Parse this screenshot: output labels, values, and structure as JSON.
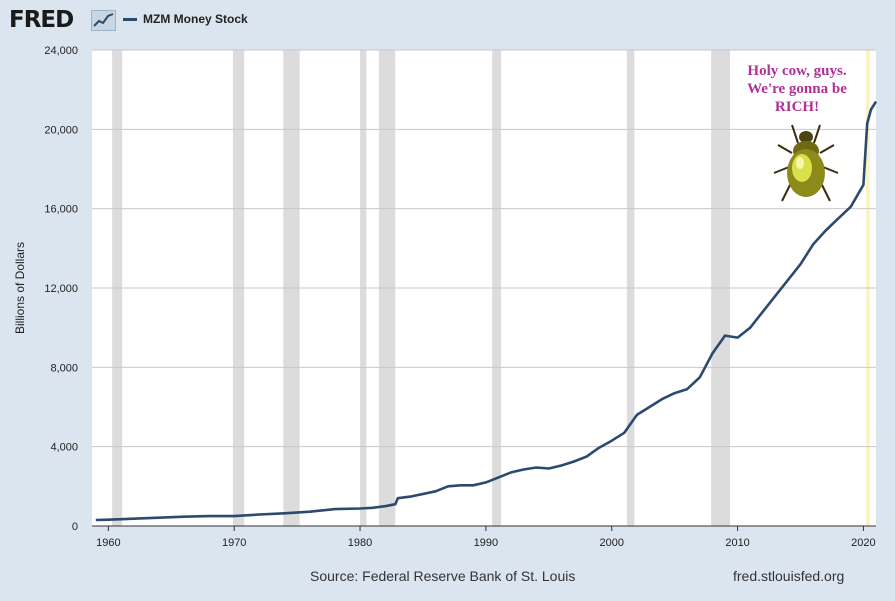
{
  "header": {
    "logo_text": "FRED",
    "logo_icon": "chart-line-icon",
    "legend_label": "MZM Money Stock",
    "legend_color": "#2b4a6f"
  },
  "annotation": {
    "line1": "Holy cow, guys.",
    "line2": "We're gonna be",
    "line3": "RICH!",
    "color": "#b0309a",
    "image": "golden-beetle-icon"
  },
  "footer": {
    "source": "Source: Federal Reserve Bank of St. Louis",
    "site": "fred.stlouisfed.org"
  },
  "chart_data": {
    "type": "line",
    "title": "",
    "xlabel": "",
    "ylabel": "Billions of Dollars",
    "xlim": [
      1958.7,
      2021.0
    ],
    "ylim": [
      0,
      24000
    ],
    "grid": true,
    "line_color": "#2b4a6f",
    "recession_color": "#dcdcdc",
    "highlight_color": "#fbf3c6",
    "x_ticks": [
      1960,
      1970,
      1980,
      1990,
      2000,
      2010,
      2020
    ],
    "x_tick_labels": [
      "1960",
      "1970",
      "1980",
      "1990",
      "2000",
      "2010",
      "2020"
    ],
    "y_ticks": [
      0,
      4000,
      8000,
      12000,
      16000,
      20000,
      24000
    ],
    "y_tick_labels": [
      "0",
      "4,000",
      "8,000",
      "12,000",
      "16,000",
      "20,000",
      "24,000"
    ],
    "recessions": [
      [
        1960.3,
        1961.1
      ],
      [
        1969.9,
        1970.8
      ],
      [
        1973.9,
        1975.2
      ],
      [
        1980.0,
        1980.5
      ],
      [
        1981.5,
        1982.8
      ],
      [
        1990.5,
        1991.2
      ],
      [
        2001.2,
        2001.8
      ],
      [
        2007.9,
        2009.4
      ]
    ],
    "highlight": [
      2020.2,
      2020.5
    ],
    "series": [
      {
        "x": [
          1959.0,
          1960.0,
          1962.0,
          1964.0,
          1966.0,
          1968.0,
          1970.0,
          1972.0,
          1974.0,
          1976.0,
          1978.0,
          1980.0,
          1981.0,
          1982.0,
          1982.8,
          1983.0,
          1984.0,
          1986.0,
          1987.0,
          1988.0,
          1989.0,
          1990.0,
          1991.0,
          1992.0,
          1993.0,
          1994.0,
          1995.0,
          1996.0,
          1997.0,
          1998.0,
          1999.0,
          2000.0,
          2001.0,
          2002.0,
          2003.0,
          2004.0,
          2005.0,
          2006.0,
          2007.0,
          2008.0,
          2009.0,
          2010.0,
          2011.0,
          2012.0,
          2013.0,
          2014.0,
          2015.0,
          2016.0,
          2017.0,
          2018.0,
          2019.0,
          2020.0,
          2020.3,
          2020.6,
          2021.0
        ],
        "values": [
          300,
          320,
          370,
          420,
          470,
          500,
          500,
          580,
          640,
          720,
          850,
          880,
          920,
          1000,
          1100,
          1400,
          1480,
          1750,
          2000,
          2050,
          2050,
          2200,
          2450,
          2700,
          2850,
          2950,
          2900,
          3050,
          3250,
          3500,
          3950,
          4300,
          4700,
          5600,
          6000,
          6400,
          6700,
          6900,
          7500,
          8700,
          9600,
          9500,
          10000,
          10800,
          11600,
          12400,
          13200,
          14200,
          14900,
          15500,
          16100,
          17200,
          20300,
          21000,
          21400
        ]
      }
    ]
  }
}
